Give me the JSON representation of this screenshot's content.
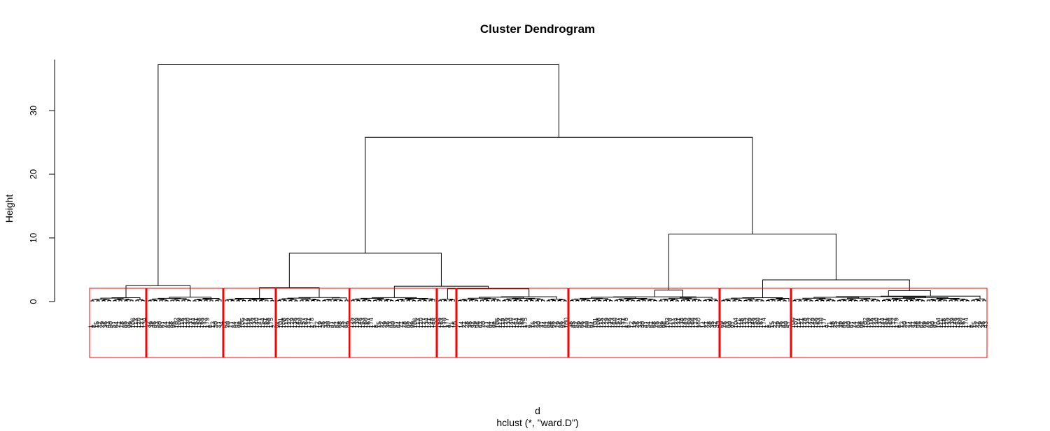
{
  "chart_data": {
    "type": "dendrogram",
    "title": "Cluster Dendrogram",
    "xlabel": "d",
    "sublabel": "hclust (*, \"ward.D\")",
    "ylabel": "Height",
    "ylim": [
      0,
      38
    ],
    "yticks": [
      0,
      10,
      20,
      30
    ],
    "method": "ward.D",
    "merges": [
      {
        "name": "root",
        "height": 37.2
      },
      {
        "name": "right-main",
        "height": 25.8
      },
      {
        "name": "right-right",
        "height": 10.6
      },
      {
        "name": "middle",
        "height": 7.6
      },
      {
        "name": "group-g8-g9",
        "height": 3.4
      },
      {
        "name": "group-g1-g2",
        "height": 2.5
      },
      {
        "name": "group-g5-g6",
        "height": 2.4
      },
      {
        "name": "group-g3-g4",
        "height": 2.2
      },
      {
        "name": "group-g6",
        "height": 2.0
      },
      {
        "name": "group-g7",
        "height": 1.8
      },
      {
        "name": "group-g9",
        "height": 1.7
      }
    ],
    "cut_groups": 10,
    "box_color": "#ff0000",
    "line_color": "#000000"
  }
}
